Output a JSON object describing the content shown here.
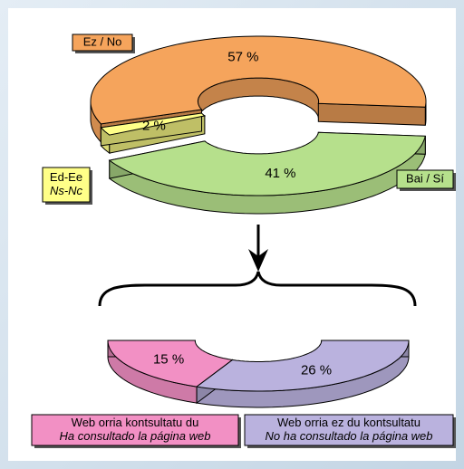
{
  "chart_data": [
    {
      "type": "donut3d",
      "categories": [
        [
          "Ez / No"
        ],
        [
          "Ed-Ee",
          "Ns-Nc"
        ],
        [
          "Bai / Sí"
        ]
      ],
      "values": [
        57,
        2,
        41
      ],
      "value_labels": [
        "57 %",
        "2 %",
        "41 %"
      ],
      "colors": [
        "#f5a45c",
        "#ffff88",
        "#b6e08c"
      ]
    },
    {
      "type": "halfdonut3d",
      "categories": [
        [
          "Web orria kontsultatu du",
          "Ha consultado la página web"
        ],
        [
          "Web orria ez du kontsultatu",
          "No ha consultado la página web"
        ]
      ],
      "values": [
        15,
        26
      ],
      "value_labels": [
        "15 %",
        "26 %"
      ],
      "colors": [
        "#f290c4",
        "#bab2de"
      ]
    }
  ]
}
